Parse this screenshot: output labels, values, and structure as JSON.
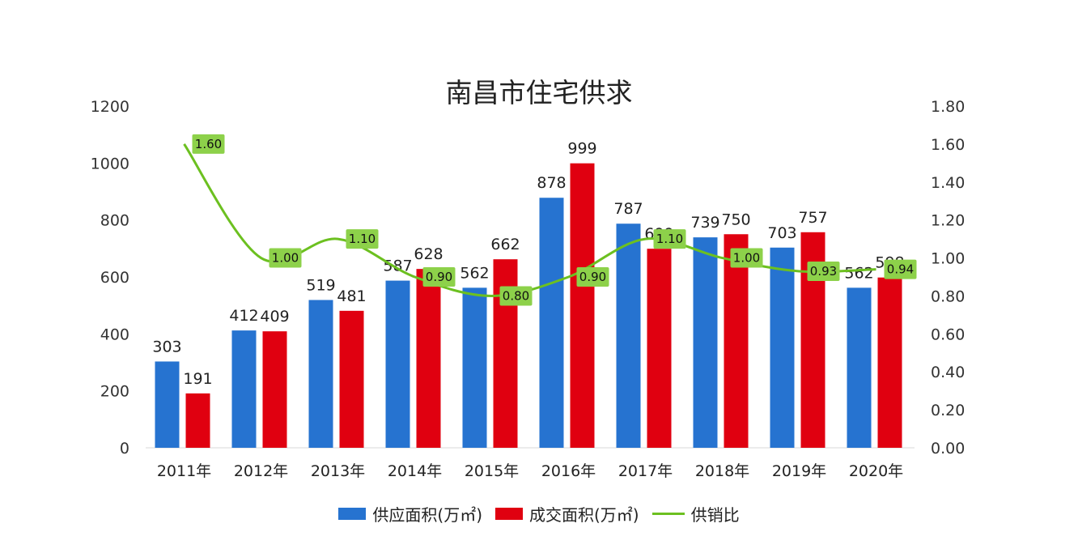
{
  "chart_data": {
    "type": "bar",
    "title": "南昌市住宅供求",
    "categories": [
      "2011年",
      "2012年",
      "2013年",
      "2014年",
      "2015年",
      "2016年",
      "2017年",
      "2018年",
      "2019年",
      "2020年"
    ],
    "series": [
      {
        "name": "供应面积(万㎡)",
        "type": "bar",
        "axis": "left",
        "color": "#2673D0",
        "values": [
          303,
          412,
          519,
          587,
          562,
          878,
          787,
          739,
          703,
          562
        ]
      },
      {
        "name": "成交面积(万㎡)",
        "type": "bar",
        "axis": "left",
        "color": "#E00010",
        "values": [
          191,
          409,
          481,
          628,
          662,
          999,
          699,
          750,
          757,
          598
        ]
      },
      {
        "name": "供销比",
        "type": "line",
        "axis": "right",
        "color": "#6CC020",
        "values": [
          1.6,
          1.0,
          1.1,
          0.9,
          0.8,
          0.9,
          1.1,
          1.0,
          0.93,
          0.94
        ]
      }
    ],
    "bar_labels": [
      [
        "303",
        "412",
        "519",
        "587",
        "562",
        "878",
        "787",
        "739",
        "703",
        "562"
      ],
      [
        "191",
        "409",
        "481",
        "628",
        "662",
        "999",
        "699",
        "750",
        "757",
        "598"
      ]
    ],
    "line_labels": [
      "1.60",
      "1.00",
      "1.10",
      "0.90",
      "0.80",
      "0.90",
      "1.10",
      "1.00",
      "0.93",
      "0.94"
    ],
    "y_left": {
      "min": 0,
      "max": 1200,
      "ticks": [
        "0",
        "200",
        "400",
        "600",
        "800",
        "1000",
        "1200"
      ]
    },
    "y_right": {
      "min": 0,
      "max": 1.8,
      "ticks": [
        "0.00",
        "0.20",
        "0.40",
        "0.60",
        "0.80",
        "1.00",
        "1.20",
        "1.40",
        "1.60",
        "1.80"
      ]
    },
    "grid": false,
    "legend_position": "bottom"
  }
}
